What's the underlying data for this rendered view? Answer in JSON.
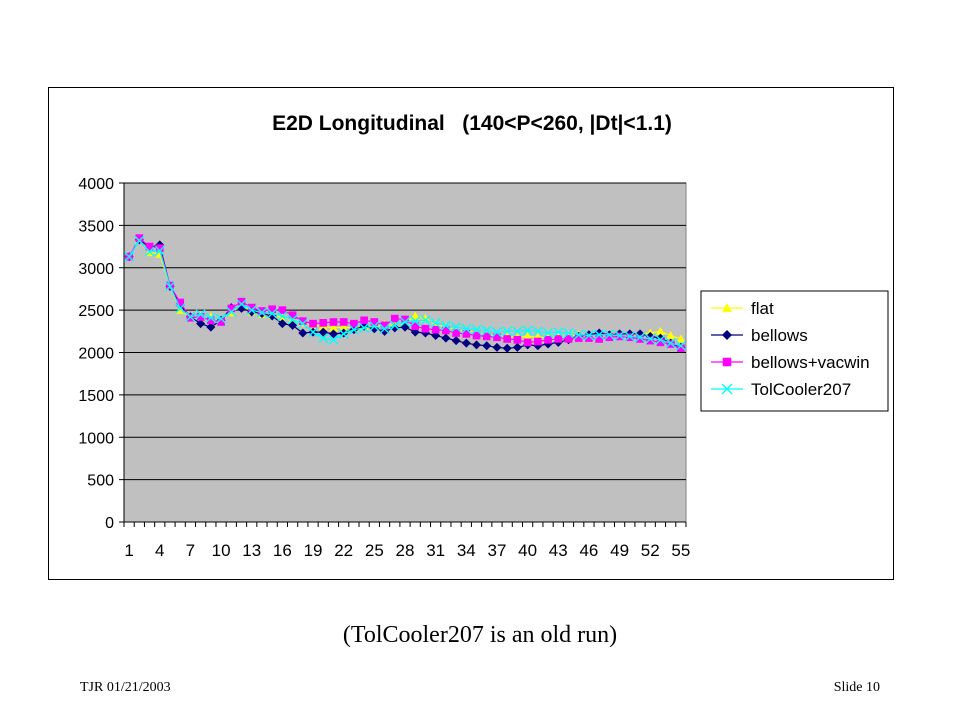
{
  "chart_data": {
    "type": "line",
    "title": "E2D Longitudinal   (140<P<260, |Dt|<1.1)",
    "xlabel": "",
    "ylabel": "",
    "x": [
      1,
      2,
      3,
      4,
      5,
      6,
      7,
      8,
      9,
      10,
      11,
      12,
      13,
      14,
      15,
      16,
      17,
      18,
      19,
      20,
      21,
      22,
      23,
      24,
      25,
      26,
      27,
      28,
      29,
      30,
      31,
      32,
      33,
      34,
      35,
      36,
      37,
      38,
      39,
      40,
      41,
      42,
      43,
      44,
      45,
      46,
      47,
      48,
      49,
      50,
      51,
      52,
      53,
      54,
      55
    ],
    "xticks": [
      "1",
      "4",
      "7",
      "10",
      "13",
      "16",
      "19",
      "22",
      "25",
      "28",
      "31",
      "34",
      "37",
      "40",
      "43",
      "46",
      "49",
      "52",
      "55"
    ],
    "ylim": [
      0,
      4000
    ],
    "yticks": [
      "0",
      "500",
      "1000",
      "1500",
      "2000",
      "2500",
      "3000",
      "3500",
      "4000"
    ],
    "grid": true,
    "plot_background": "#c0c0c0",
    "legend_position": "right",
    "series": [
      {
        "name": "flat",
        "color": "#ffff00",
        "marker": "triangle",
        "values": [
          3130,
          3330,
          3180,
          3160,
          2780,
          2500,
          2410,
          2430,
          2420,
          2380,
          2470,
          2560,
          2480,
          2450,
          2440,
          2420,
          2390,
          2350,
          2320,
          2310,
          2290,
          2300,
          2290,
          2310,
          2300,
          2330,
          2320,
          2360,
          2430,
          2400,
          2330,
          2300,
          2260,
          2250,
          2240,
          2210,
          2200,
          2190,
          2180,
          2190,
          2180,
          2180,
          2190,
          2200,
          2210,
          2200,
          2210,
          2220,
          2220,
          2210,
          2210,
          2230,
          2250,
          2200,
          2160
        ]
      },
      {
        "name": "bellows",
        "color": "#000080",
        "marker": "diamond",
        "values": [
          3130,
          3330,
          3240,
          3270,
          2780,
          2560,
          2420,
          2340,
          2300,
          2380,
          2530,
          2520,
          2480,
          2460,
          2430,
          2340,
          2320,
          2230,
          2240,
          2240,
          2220,
          2230,
          2270,
          2310,
          2280,
          2250,
          2290,
          2300,
          2240,
          2230,
          2200,
          2170,
          2140,
          2110,
          2090,
          2080,
          2060,
          2050,
          2060,
          2090,
          2080,
          2100,
          2120,
          2150,
          2190,
          2210,
          2230,
          2210,
          2220,
          2220,
          2220,
          2190,
          2170,
          2110,
          2060
        ]
      },
      {
        "name": "bellows+vacwin",
        "color": "#ff00ff",
        "marker": "square",
        "values": [
          3130,
          3350,
          3250,
          3230,
          2790,
          2590,
          2410,
          2420,
          2380,
          2360,
          2520,
          2600,
          2530,
          2490,
          2510,
          2500,
          2440,
          2370,
          2340,
          2350,
          2360,
          2360,
          2340,
          2380,
          2360,
          2320,
          2400,
          2390,
          2310,
          2280,
          2270,
          2260,
          2230,
          2220,
          2200,
          2190,
          2180,
          2160,
          2150,
          2120,
          2130,
          2150,
          2160,
          2160,
          2170,
          2170,
          2160,
          2180,
          2190,
          2180,
          2160,
          2140,
          2120,
          2100,
          2050
        ]
      },
      {
        "name": "TolCooler207",
        "color": "#00ffff",
        "marker": "x",
        "values": [
          3130,
          3320,
          3190,
          3200,
          2780,
          2520,
          2420,
          2450,
          2410,
          2400,
          2480,
          2570,
          2500,
          2470,
          2460,
          2430,
          2390,
          2340,
          2240,
          2170,
          2150,
          2220,
          2270,
          2290,
          2310,
          2280,
          2320,
          2360,
          2370,
          2380,
          2350,
          2320,
          2300,
          2280,
          2270,
          2260,
          2240,
          2250,
          2250,
          2260,
          2250,
          2230,
          2240,
          2230,
          2210,
          2200,
          2210,
          2210,
          2200,
          2190,
          2180,
          2160,
          2150,
          2110,
          2080
        ]
      }
    ]
  },
  "caption": "(TolCooler207 is an old run)",
  "footer": {
    "left": "TJR  01/21/2003",
    "right": "Slide 10"
  }
}
